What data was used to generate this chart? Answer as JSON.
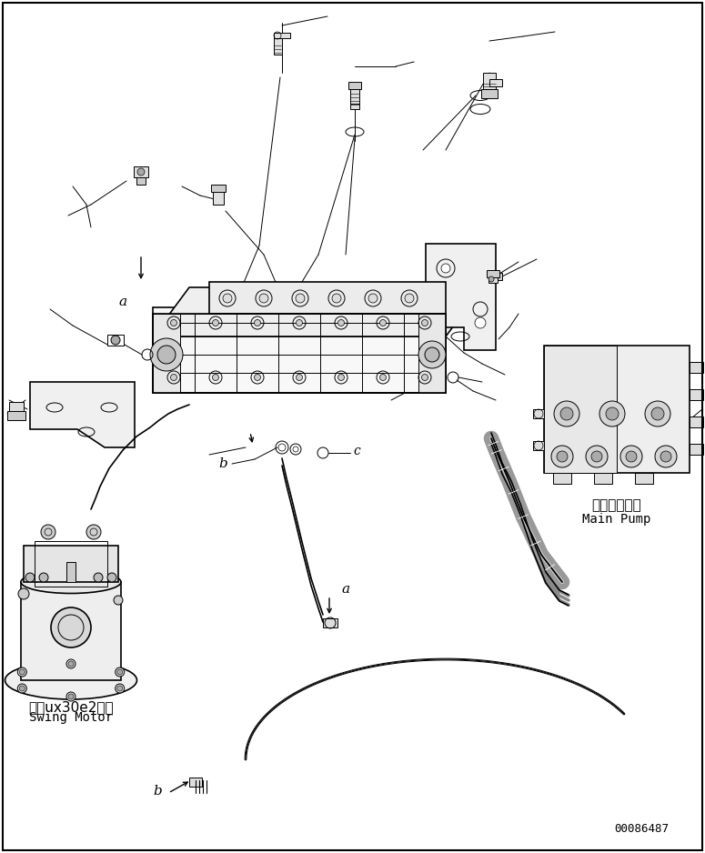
{
  "bg_color": "#ffffff",
  "line_color": "#000000",
  "figsize": [
    7.75,
    9.38
  ],
  "dpi": 100,
  "labels": {
    "swing_motor_jp": "旋回ux30e2ータ",
    "swing_motor_en": "Swing Motor",
    "main_pump_jp": "メインポンプ",
    "main_pump_en": "Main Pump",
    "label_a1": "a",
    "label_b1": "b",
    "label_b2": "b",
    "label_c": "c",
    "serial": "00086487"
  },
  "font_sizes": {
    "label": 10,
    "component": 9,
    "serial": 8
  }
}
